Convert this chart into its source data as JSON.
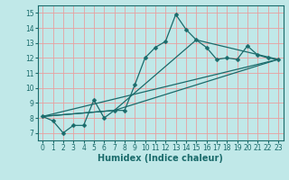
{
  "xlabel": "Humidex (Indice chaleur)",
  "bg_color": "#c0e8e8",
  "grid_color": "#e8a0a0",
  "line_color": "#1a6b6b",
  "xlim": [
    -0.5,
    23.5
  ],
  "ylim": [
    6.5,
    15.5
  ],
  "xticks": [
    0,
    1,
    2,
    3,
    4,
    5,
    6,
    7,
    8,
    9,
    10,
    11,
    12,
    13,
    14,
    15,
    16,
    17,
    18,
    19,
    20,
    21,
    22,
    23
  ],
  "yticks": [
    7,
    8,
    9,
    10,
    11,
    12,
    13,
    14,
    15
  ],
  "main_line": {
    "x": [
      0,
      1,
      2,
      3,
      4,
      5,
      6,
      7,
      8,
      9,
      10,
      11,
      12,
      13,
      14,
      15,
      16,
      17,
      18,
      19,
      20,
      21,
      22,
      23
    ],
    "y": [
      8.1,
      7.8,
      7.0,
      7.5,
      7.5,
      9.2,
      8.0,
      8.5,
      8.5,
      10.2,
      12.0,
      12.7,
      13.1,
      14.9,
      13.9,
      13.2,
      12.7,
      11.9,
      12.0,
      11.9,
      12.8,
      12.2,
      12.0,
      11.9
    ]
  },
  "trend_lines": [
    {
      "x": [
        0,
        23
      ],
      "y": [
        8.1,
        11.9
      ]
    },
    {
      "x": [
        0,
        7,
        23
      ],
      "y": [
        8.1,
        8.5,
        11.9
      ]
    },
    {
      "x": [
        0,
        7,
        15,
        23
      ],
      "y": [
        8.1,
        8.5,
        13.2,
        11.9
      ]
    }
  ],
  "linewidth": 0.9,
  "markersize": 2.5,
  "xlabel_fontsize": 7,
  "tick_fontsize": 5.5
}
